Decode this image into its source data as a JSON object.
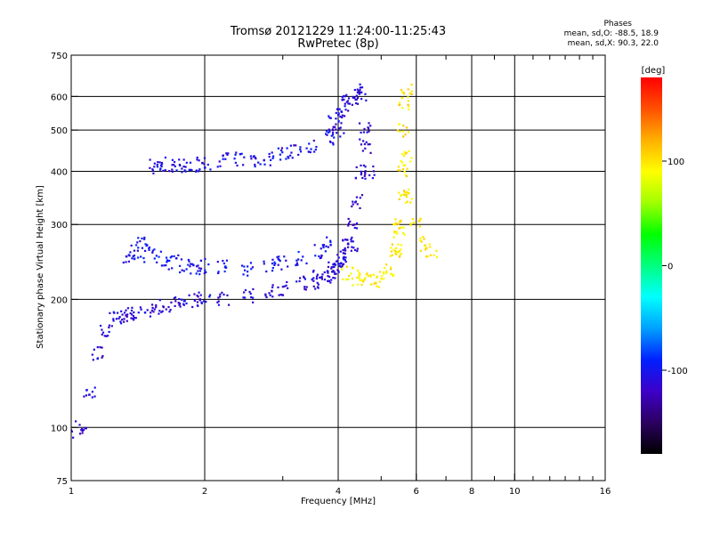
{
  "header": {
    "title": "Tromsø 20121229 11:24:00-11:25:43",
    "subtitle": "RwPretec (8p)",
    "phases_label": "Phases",
    "phases_o": "mean, sd,O: -88.5, 18.9",
    "phases_x": "mean, sd,X:  90.3, 22.0"
  },
  "chart_data": {
    "type": "scatter",
    "title": "Tromsø 20121229 11:24:00-11:25:43",
    "subtitle": "RwPretec (8p)",
    "xlabel": "Frequency [MHz]",
    "ylabel": "Stationary phase Virtual Height [km]",
    "x_scale": "log",
    "y_scale": "log",
    "xlim": [
      1,
      16
    ],
    "ylim": [
      75,
      750
    ],
    "x_ticks": [
      1,
      2,
      4,
      6,
      8,
      10,
      16
    ],
    "x_tick_labels": [
      "1",
      "2",
      "4",
      "6",
      "8",
      "10",
      "16"
    ],
    "x_minor_ticks": [
      3,
      5,
      7,
      9,
      11,
      12,
      13,
      14,
      15
    ],
    "y_ticks": [
      75,
      100,
      200,
      300,
      400,
      500,
      600,
      750
    ],
    "y_tick_labels": [
      "75",
      "100",
      "200",
      "300",
      "400",
      "500",
      "600",
      "750"
    ],
    "grid": true,
    "colorbar": {
      "label": "[deg]",
      "range": [
        -180,
        180
      ],
      "ticks": [
        100,
        0,
        -100
      ],
      "tick_labels": [
        "100",
        "0",
        "-100"
      ],
      "colors": [
        "#000000",
        "#2b0060",
        "#3d00c8",
        "#0020ff",
        "#00a0ff",
        "#00ffff",
        "#00ff80",
        "#00ff00",
        "#a0ff00",
        "#ffff00",
        "#ffb000",
        "#ff5000",
        "#ff0000"
      ]
    },
    "series": [
      {
        "traces": [
          {
            "x": [
              1.0,
              1.05,
              1.1,
              1.15,
              1.2,
              1.25,
              1.3,
              1.35,
              1.4,
              1.5,
              1.6,
              1.7,
              1.8,
              1.9,
              2.0,
              2.2,
              2.5,
              2.8,
              3.0,
              3.3,
              3.6,
              3.9,
              4.1,
              4.3
            ],
            "y": [
              98,
              100,
              120,
              150,
              170,
              180,
              182,
              185,
              185,
              188,
              192,
              195,
              198,
              200,
              200,
              202,
              205,
              208,
              212,
              218,
              228,
              240,
              255,
              270
            ],
            "phase": -110
          },
          {
            "x": [
              1.35,
              1.4,
              1.45,
              1.5,
              1.6,
              1.7,
              1.8,
              1.9,
              2.0,
              2.2,
              2.5,
              2.8,
              3.0,
              3.3,
              3.6,
              3.8
            ],
            "y": [
              250,
              260,
              270,
              255,
              250,
              245,
              240,
              235,
              240,
              238,
              235,
              240,
              245,
              250,
              260,
              270
            ],
            "phase": -100
          },
          {
            "x": [
              1.55,
              1.6,
              1.7,
              1.8,
              1.9,
              2.0,
              2.2,
              2.4,
              2.6,
              2.8,
              3.0,
              3.2,
              3.5,
              3.8,
              4.0
            ],
            "y": [
              410,
              415,
              412,
              410,
              415,
              420,
              425,
              430,
              425,
              430,
              440,
              445,
              460,
              480,
              500
            ],
            "phase": -105
          },
          {
            "x": [
              3.9,
              4.0,
              4.1,
              4.2,
              4.3,
              4.4,
              4.5,
              4.6,
              4.7
            ],
            "y": [
              520,
              540,
              560,
              580,
              600,
              620,
              600,
              500,
              400
            ],
            "phase": -110
          },
          {
            "x": [
              4.2,
              4.4,
              4.6,
              4.8,
              5.0,
              5.2,
              5.4,
              5.5,
              5.6,
              5.7
            ],
            "y": [
              230,
              225,
              222,
              220,
              225,
              235,
              255,
              290,
              350,
              430
            ],
            "phase": 95
          },
          {
            "x": [
              5.4,
              5.5,
              5.6,
              5.6,
              5.65,
              5.7,
              5.8,
              6.0,
              6.2,
              6.5
            ],
            "y": [
              260,
              300,
              400,
              500,
              580,
              620,
              350,
              300,
              270,
              260
            ],
            "phase": 100
          },
          {
            "x": [
              3.6,
              3.8,
              3.9,
              4.0,
              4.1,
              4.2,
              4.3,
              4.4,
              4.5,
              4.6
            ],
            "y": [
              220,
              225,
              230,
              235,
              250,
              270,
              300,
              340,
              400,
              460
            ],
            "phase": -115
          }
        ]
      }
    ]
  },
  "colors": {
    "background": "#ffffff",
    "grid": "#000000"
  }
}
